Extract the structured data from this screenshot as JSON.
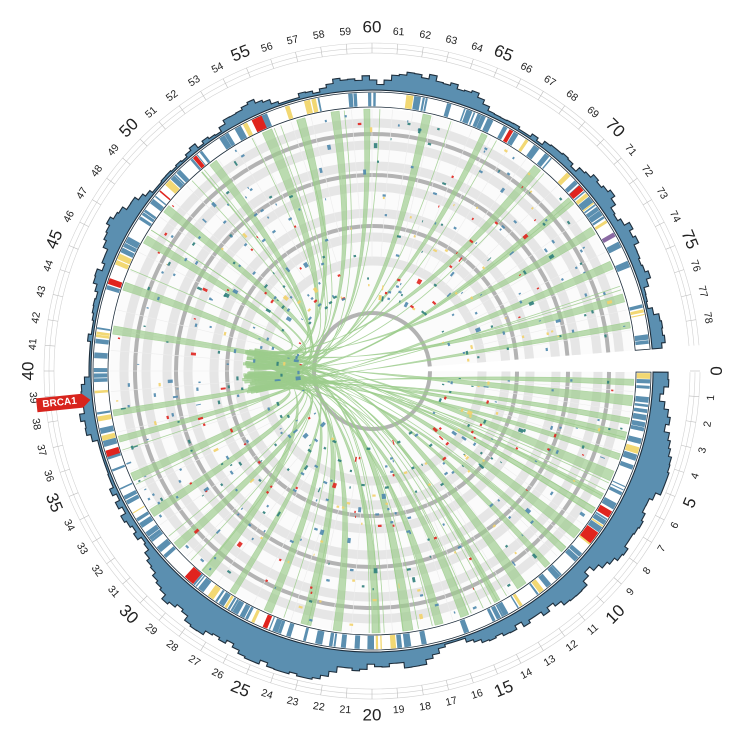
{
  "diagram": {
    "type": "circos",
    "scale": {
      "min": 0,
      "max": 80,
      "gap_end": 79
    },
    "tick_labels": [
      "0",
      "1",
      "2",
      "3",
      "4",
      "5",
      "6",
      "7",
      "8",
      "9",
      "10",
      "11",
      "12",
      "13",
      "14",
      "15",
      "16",
      "17",
      "18",
      "19",
      "20",
      "21",
      "22",
      "23",
      "24",
      "25",
      "26",
      "27",
      "28",
      "29",
      "30",
      "31",
      "32",
      "33",
      "34",
      "35",
      "36",
      "37",
      "38",
      "39",
      "40",
      "41",
      "42",
      "43",
      "44",
      "45",
      "46",
      "47",
      "48",
      "49",
      "50",
      "51",
      "52",
      "53",
      "54",
      "55",
      "56",
      "57",
      "58",
      "59",
      "60",
      "61",
      "62",
      "63",
      "64",
      "65",
      "66",
      "67",
      "68",
      "69",
      "70",
      "71",
      "72",
      "73",
      "74",
      "75",
      "76",
      "77",
      "78"
    ],
    "major_every": 5,
    "gene_label": {
      "text": "BRCA1",
      "position": 38.7
    },
    "colors": {
      "histogram": "#5b8fb0",
      "histogram_outline": "#1e2e3c",
      "band_blue": "#5b8fb0",
      "band_yellow": "#f2d873",
      "band_red": "#e0241e",
      "band_purple": "#8a6aa3",
      "link": "#9ccc8c",
      "ring_dark": "#b3b3b3",
      "ring_light": "#e6e6e6",
      "mark_blue": "#4f88ad",
      "mark_teal": "#2f7e7a",
      "mark_yellow": "#f2d26a",
      "mark_red": "#e0241e",
      "label_red": "#d8241d"
    }
  }
}
